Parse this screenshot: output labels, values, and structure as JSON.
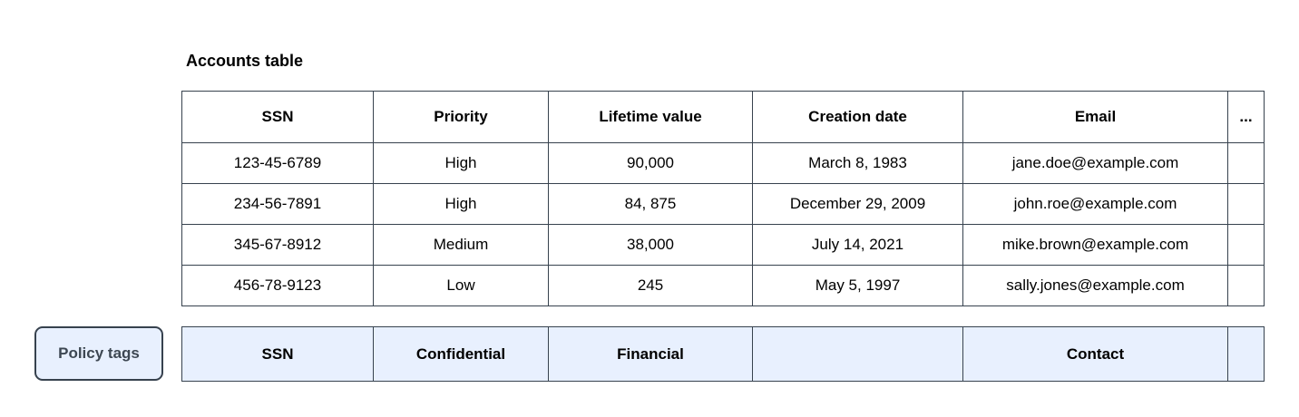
{
  "title": "Accounts table",
  "table": {
    "columns": [
      "SSN",
      "Priority",
      "Lifetime value",
      "Creation date",
      "Email",
      "..."
    ],
    "rows": [
      [
        "123-45-6789",
        "High",
        "90,000",
        "March 8, 1983",
        "jane.doe@example.com",
        ""
      ],
      [
        "234-56-7891",
        "High",
        "84, 875",
        "December 29, 2009",
        "john.roe@example.com",
        ""
      ],
      [
        "345-67-8912",
        "Medium",
        "38,000",
        "July 14, 2021",
        "mike.brown@example.com",
        ""
      ],
      [
        "456-78-9123",
        "Low",
        "245",
        "May 5, 1997",
        "sally.jones@example.com",
        ""
      ]
    ]
  },
  "policy": {
    "label": "Policy tags",
    "tags": [
      "SSN",
      "Confidential",
      "Financial",
      "",
      "Contact",
      ""
    ]
  },
  "colors": {
    "border": "#37424e",
    "policy_background": "#e8f0fe",
    "policy_label_text": "#3d4752",
    "page_background": "#ffffff"
  },
  "chart_data": {
    "type": "table",
    "title": "Accounts table",
    "columns": [
      "SSN",
      "Priority",
      "Lifetime value",
      "Creation date",
      "Email",
      "..."
    ],
    "rows": [
      [
        "123-45-6789",
        "High",
        "90,000",
        "March 8, 1983",
        "jane.doe@example.com",
        ""
      ],
      [
        "234-56-7891",
        "High",
        "84, 875",
        "December 29, 2009",
        "john.roe@example.com",
        ""
      ],
      [
        "345-67-8912",
        "Medium",
        "38,000",
        "July 14, 2021",
        "mike.brown@example.com",
        ""
      ],
      [
        "456-78-9123",
        "Low",
        "245",
        "May 5, 1997",
        "sally.jones@example.com",
        ""
      ]
    ],
    "annotations": {
      "policy_tags_label": "Policy tags",
      "policy_tags_per_column": [
        "SSN",
        "Confidential",
        "Financial",
        "",
        "Contact",
        ""
      ]
    }
  }
}
